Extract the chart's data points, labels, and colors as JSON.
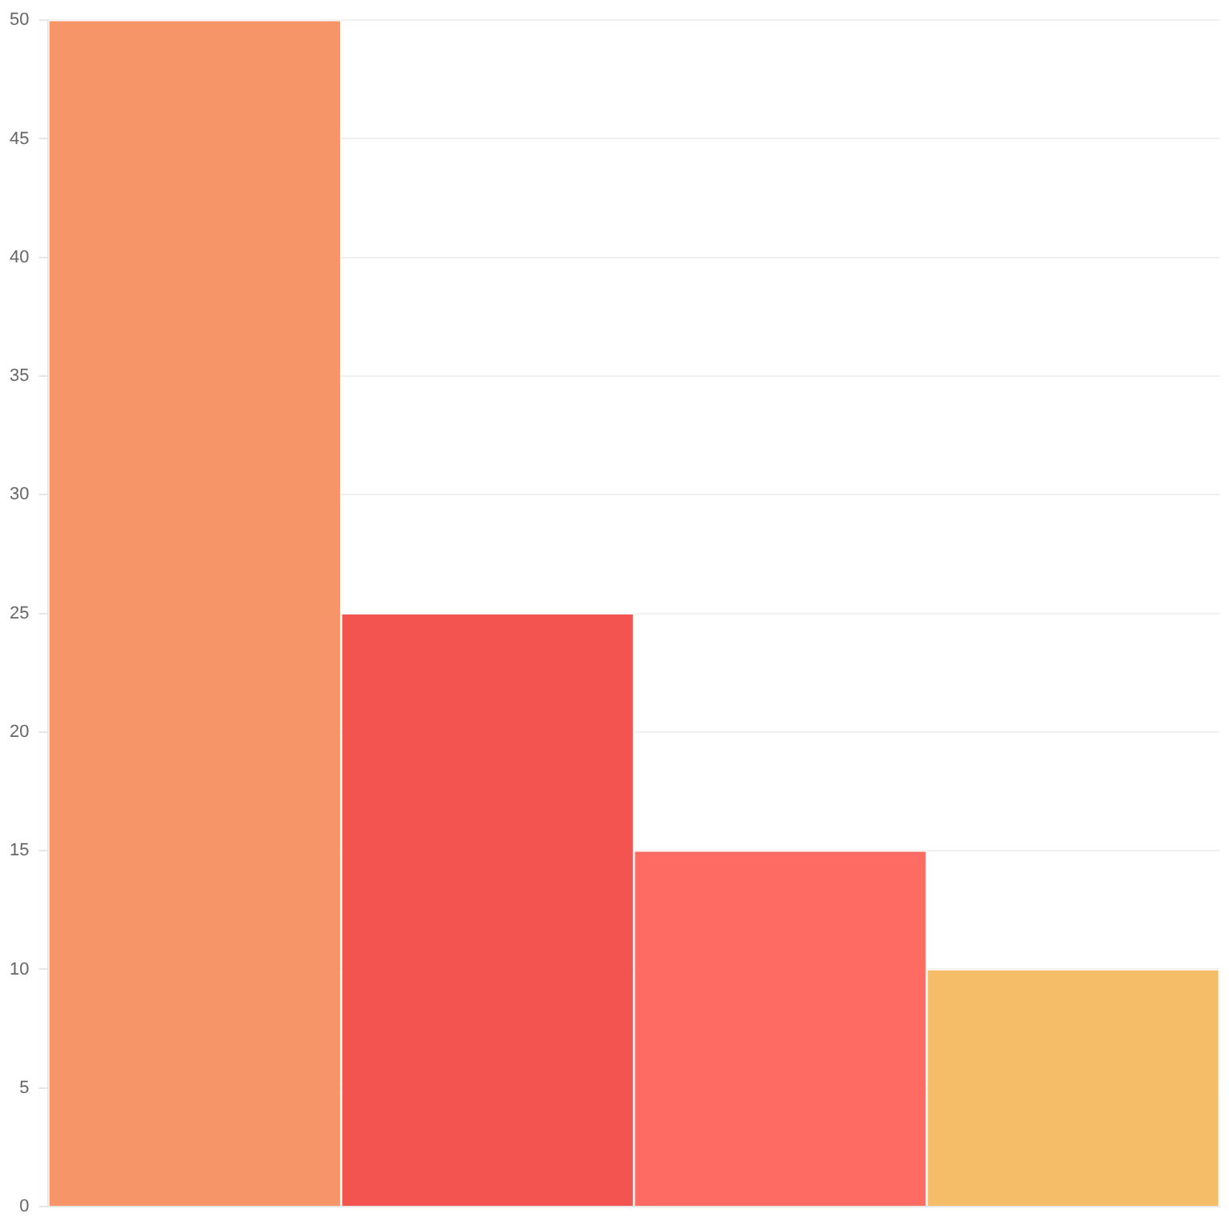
{
  "chart_data": {
    "type": "bar",
    "categories": [
      null,
      null,
      null,
      null
    ],
    "values": [
      50,
      25,
      15,
      10
    ],
    "colors": [
      "#f69668",
      "#f3544f",
      "#fe6b63",
      "#f5bd67"
    ],
    "ylim": [
      0,
      50
    ],
    "yticks": [
      0,
      5,
      10,
      15,
      20,
      25,
      30,
      35,
      40,
      45,
      50
    ],
    "grid": "y",
    "tick_labels": "y"
  }
}
